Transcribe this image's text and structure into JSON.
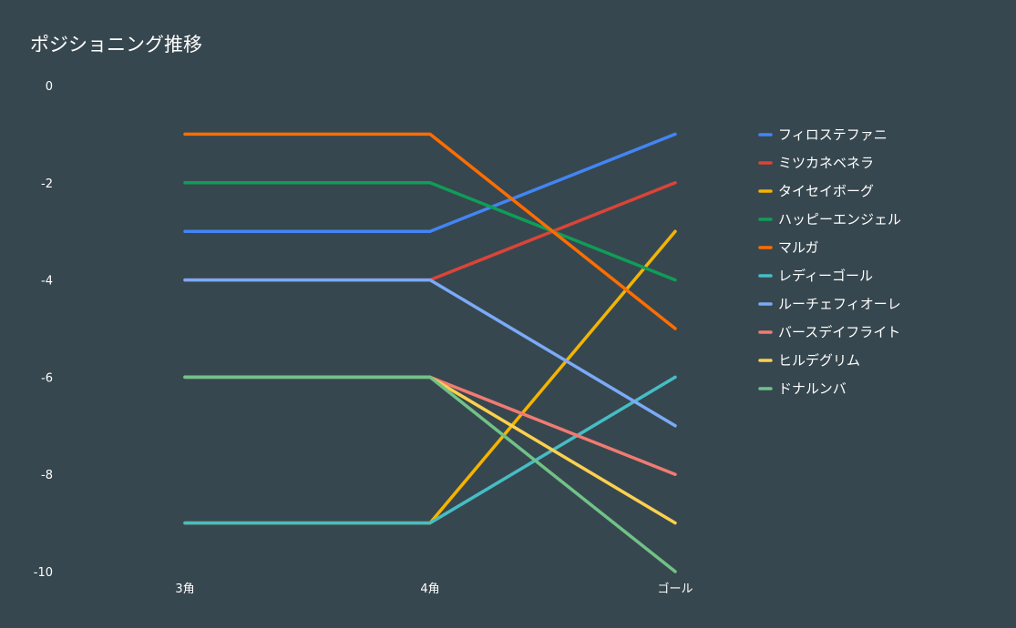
{
  "chart_data": {
    "type": "line",
    "title": "ポジショニング推移",
    "categories": [
      "3角",
      "4角",
      "ゴール"
    ],
    "ylim": [
      -10,
      0
    ],
    "yticks": [
      0,
      -2,
      -4,
      -6,
      -8,
      -10
    ],
    "grid": false,
    "legend_position": "right",
    "series": [
      {
        "name": "フィロステファニ",
        "color": "#4285f4",
        "values": [
          -3,
          -3,
          -1
        ]
      },
      {
        "name": "ミツカネベネラ",
        "color": "#db4437",
        "values": [
          -4,
          -4,
          -2
        ]
      },
      {
        "name": "タイセイボーグ",
        "color": "#f4b400",
        "values": [
          -9,
          -9,
          -3
        ]
      },
      {
        "name": "ハッピーエンジェル",
        "color": "#0f9d58",
        "values": [
          -2,
          -2,
          -4
        ]
      },
      {
        "name": "マルガ",
        "color": "#ff6d00",
        "values": [
          -1,
          -1,
          -5
        ]
      },
      {
        "name": "レディーゴール",
        "color": "#46bdc6",
        "values": [
          -9,
          -9,
          -6
        ]
      },
      {
        "name": "ルーチェフィオーレ",
        "color": "#7baaf7",
        "values": [
          -4,
          -4,
          -7
        ]
      },
      {
        "name": "バースデイフライト",
        "color": "#f07b72",
        "values": [
          -6,
          -6,
          -8
        ]
      },
      {
        "name": "ヒルデグリム",
        "color": "#fcd04f",
        "values": [
          -6,
          -6,
          -9
        ]
      },
      {
        "name": "ドナルンバ",
        "color": "#71c287",
        "values": [
          -6,
          -6,
          -10
        ]
      }
    ]
  }
}
